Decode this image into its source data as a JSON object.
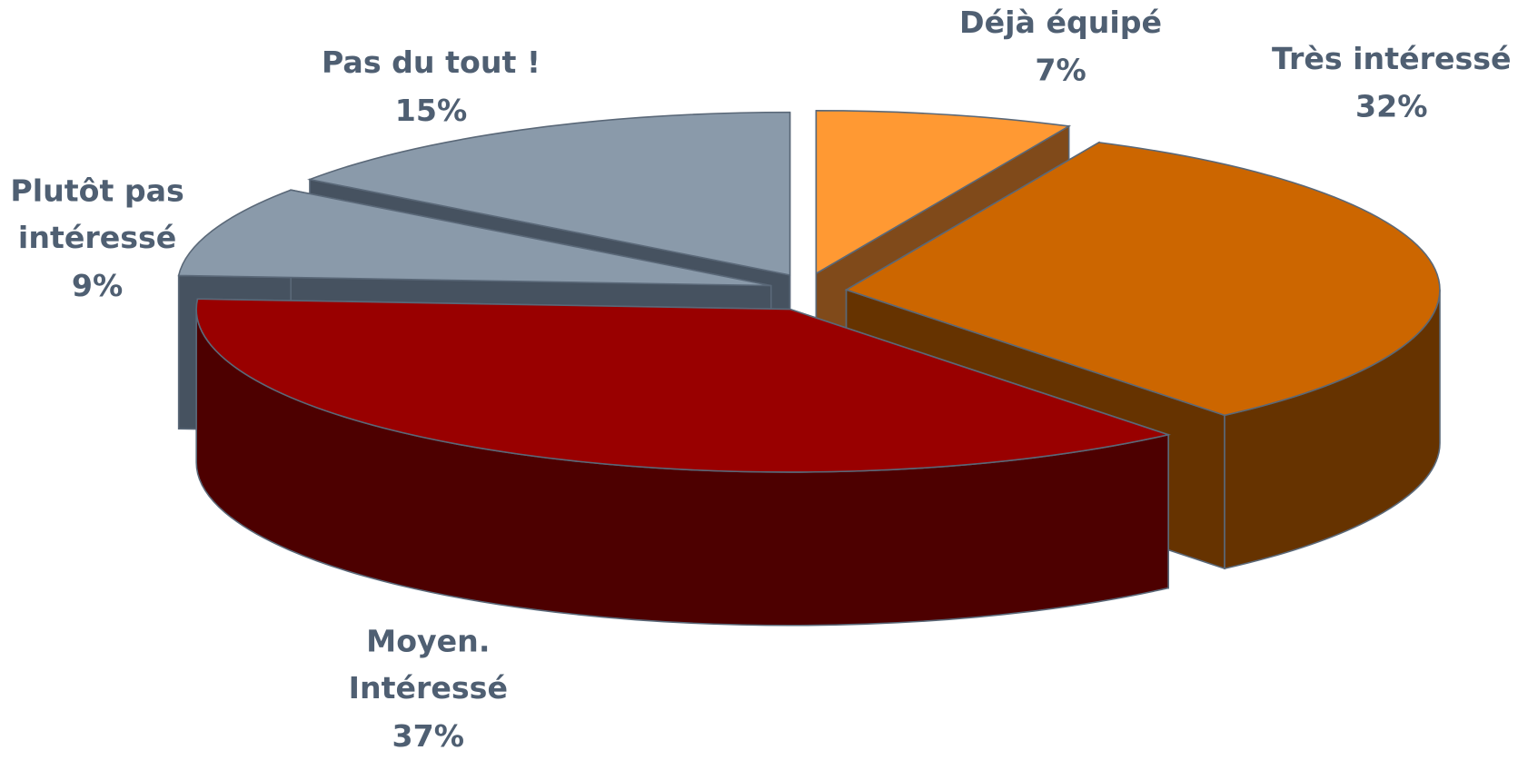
{
  "chart_data": {
    "type": "pie3d",
    "categories": [
      "Déjà équipé",
      "Très intéressé",
      "Moyen. Intéressé",
      "Plutôt pas intéressé",
      "Pas du tout !"
    ],
    "values": [
      7,
      32,
      37,
      9,
      15
    ],
    "value_labels": [
      "7%",
      "32%",
      "37%",
      "9%",
      "15%"
    ],
    "colors": [
      "#ff9933",
      "#cc6600",
      "#990000",
      "#8a9aaa",
      "#8a9aaa"
    ],
    "side_colors": [
      "#804a1a",
      "#663300",
      "#4d0000",
      "#465260",
      "#465260"
    ]
  }
}
